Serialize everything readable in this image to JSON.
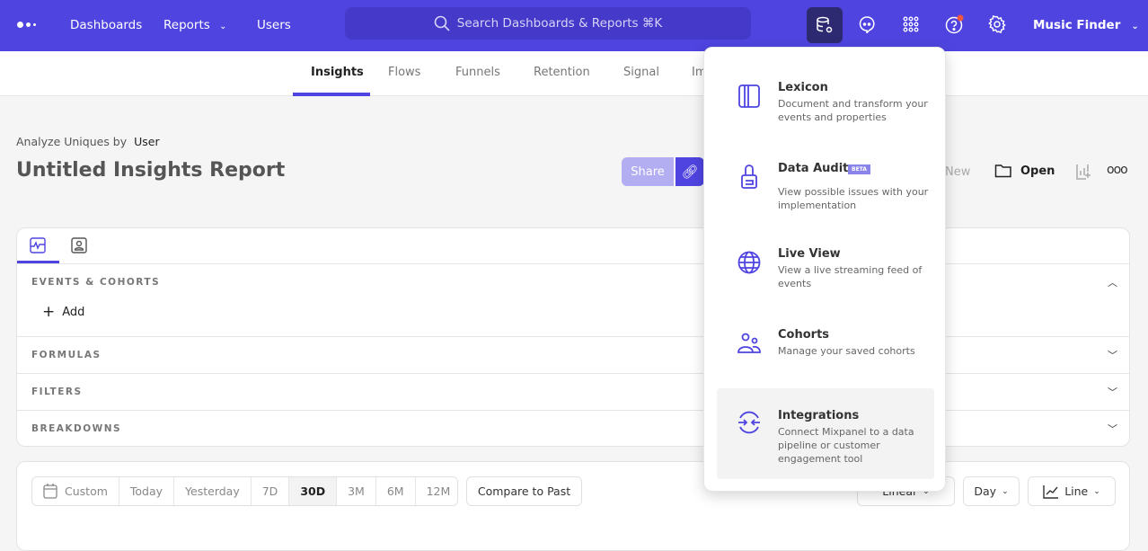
{
  "topbar": {
    "nav": [
      "Dashboards",
      "Reports",
      "Users"
    ],
    "search_placeholder": "Search Dashboards & Reports ⌘K",
    "project": "Music Finder",
    "accent": "#4f44e0",
    "notification_color": "#f0563c"
  },
  "tabs": [
    "Insights",
    "Flows",
    "Funnels",
    "Retention",
    "Signal",
    "Im"
  ],
  "header": {
    "analyze_prefix": "Analyze Uniques by",
    "analyze_value": "User",
    "title": "Untitled Insights Report",
    "share": "Share",
    "new": "New",
    "open": "Open"
  },
  "query": {
    "sections": [
      "EVENTS & COHORTS",
      "FORMULAS",
      "FILTERS",
      "BREAKDOWNS"
    ],
    "add": "Add"
  },
  "date_range": {
    "options": [
      "Custom",
      "Today",
      "Yesterday",
      "7D",
      "30D",
      "3M",
      "6M",
      "12M"
    ],
    "selected": "30D",
    "compare": "Compare to Past",
    "scale": "Linear",
    "interval": "Day",
    "chart_type": "Line"
  },
  "dropdown": {
    "items": [
      {
        "icon": "lexicon-icon",
        "title": "Lexicon",
        "desc": "Document and transform your events and properties"
      },
      {
        "icon": "data-audit-icon",
        "title": "Data Audit",
        "badge": "BETA",
        "desc": "View possible issues with your implementation"
      },
      {
        "icon": "globe-icon",
        "title": "Live View",
        "desc": "View a live streaming feed of events"
      },
      {
        "icon": "cohorts-icon",
        "title": "Cohorts",
        "desc": "Manage your saved cohorts"
      },
      {
        "icon": "integrations-icon",
        "title": "Integrations",
        "desc": "Connect Mixpanel to a data pipeline or customer engagement tool"
      }
    ]
  }
}
